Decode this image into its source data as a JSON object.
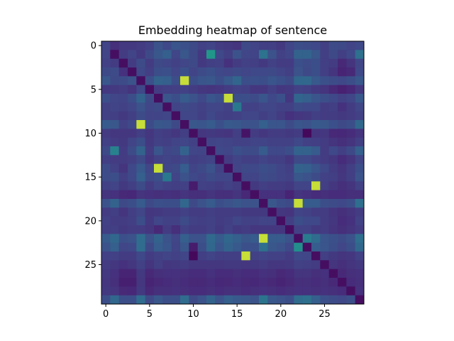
{
  "chart_data": {
    "type": "heatmap",
    "title": "Embedding heatmap of sentence",
    "xlabel": "",
    "ylabel": "",
    "colormap": "viridis",
    "rows": 30,
    "cols": 30,
    "x_ticks": [
      0,
      5,
      10,
      15,
      20,
      25
    ],
    "y_ticks": [
      0,
      5,
      10,
      15,
      20,
      25
    ],
    "value_range": [
      0,
      1
    ],
    "values": [
      [
        0.25,
        0.17,
        0.21,
        0.21,
        0.22,
        0.24,
        0.32,
        0.27,
        0.33,
        0.31,
        0.28,
        0.24,
        0.25,
        0.22,
        0.21,
        0.19,
        0.28,
        0.25,
        0.23,
        0.23,
        0.21,
        0.26,
        0.3,
        0.29,
        0.27,
        0.23,
        0.29,
        0.28,
        0.25,
        0.27
      ],
      [
        0.25,
        0.05,
        0.22,
        0.25,
        0.21,
        0.28,
        0.34,
        0.38,
        0.26,
        0.34,
        0.28,
        0.21,
        0.66,
        0.27,
        0.23,
        0.32,
        0.26,
        0.25,
        0.47,
        0.32,
        0.24,
        0.26,
        0.4,
        0.4,
        0.34,
        0.23,
        0.28,
        0.23,
        0.27,
        0.46
      ],
      [
        0.24,
        0.22,
        0.05,
        0.22,
        0.29,
        0.22,
        0.28,
        0.26,
        0.24,
        0.26,
        0.28,
        0.21,
        0.23,
        0.24,
        0.18,
        0.22,
        0.24,
        0.23,
        0.21,
        0.24,
        0.22,
        0.22,
        0.31,
        0.29,
        0.3,
        0.23,
        0.22,
        0.15,
        0.19,
        0.26
      ],
      [
        0.28,
        0.29,
        0.18,
        0.05,
        0.27,
        0.23,
        0.3,
        0.31,
        0.26,
        0.31,
        0.25,
        0.29,
        0.31,
        0.27,
        0.26,
        0.28,
        0.26,
        0.27,
        0.27,
        0.28,
        0.25,
        0.23,
        0.32,
        0.28,
        0.3,
        0.23,
        0.19,
        0.13,
        0.15,
        0.27
      ],
      [
        0.34,
        0.28,
        0.29,
        0.32,
        0.05,
        0.31,
        0.4,
        0.38,
        0.3,
        0.95,
        0.3,
        0.33,
        0.34,
        0.3,
        0.35,
        0.41,
        0.3,
        0.31,
        0.3,
        0.33,
        0.31,
        0.28,
        0.42,
        0.42,
        0.35,
        0.31,
        0.29,
        0.27,
        0.3,
        0.34
      ],
      [
        0.21,
        0.21,
        0.22,
        0.19,
        0.27,
        0.05,
        0.22,
        0.23,
        0.23,
        0.24,
        0.22,
        0.2,
        0.19,
        0.2,
        0.22,
        0.24,
        0.23,
        0.2,
        0.2,
        0.23,
        0.2,
        0.21,
        0.24,
        0.23,
        0.21,
        0.19,
        0.15,
        0.12,
        0.14,
        0.2
      ],
      [
        0.3,
        0.26,
        0.25,
        0.3,
        0.4,
        0.28,
        0.05,
        0.33,
        0.3,
        0.36,
        0.32,
        0.27,
        0.33,
        0.31,
        0.95,
        0.3,
        0.3,
        0.29,
        0.33,
        0.27,
        0.31,
        0.2,
        0.41,
        0.38,
        0.33,
        0.3,
        0.27,
        0.24,
        0.26,
        0.34
      ],
      [
        0.24,
        0.25,
        0.24,
        0.26,
        0.32,
        0.26,
        0.28,
        0.05,
        0.25,
        0.28,
        0.26,
        0.24,
        0.26,
        0.26,
        0.24,
        0.5,
        0.24,
        0.24,
        0.26,
        0.26,
        0.24,
        0.24,
        0.29,
        0.27,
        0.27,
        0.22,
        0.23,
        0.18,
        0.22,
        0.26
      ],
      [
        0.24,
        0.23,
        0.21,
        0.23,
        0.29,
        0.25,
        0.25,
        0.26,
        0.05,
        0.26,
        0.26,
        0.23,
        0.27,
        0.24,
        0.23,
        0.24,
        0.26,
        0.26,
        0.23,
        0.25,
        0.22,
        0.18,
        0.2,
        0.21,
        0.23,
        0.22,
        0.22,
        0.21,
        0.22,
        0.24
      ],
      [
        0.36,
        0.34,
        0.24,
        0.27,
        0.95,
        0.29,
        0.34,
        0.33,
        0.28,
        0.05,
        0.34,
        0.33,
        0.36,
        0.31,
        0.35,
        0.34,
        0.32,
        0.32,
        0.38,
        0.33,
        0.33,
        0.29,
        0.33,
        0.32,
        0.35,
        0.34,
        0.31,
        0.28,
        0.3,
        0.42
      ],
      [
        0.22,
        0.2,
        0.2,
        0.2,
        0.23,
        0.2,
        0.23,
        0.22,
        0.2,
        0.23,
        0.05,
        0.2,
        0.21,
        0.2,
        0.19,
        0.23,
        0.07,
        0.22,
        0.2,
        0.22,
        0.22,
        0.21,
        0.22,
        0.03,
        0.19,
        0.2,
        0.15,
        0.14,
        0.16,
        0.19
      ],
      [
        0.24,
        0.22,
        0.21,
        0.25,
        0.3,
        0.21,
        0.24,
        0.23,
        0.25,
        0.26,
        0.24,
        0.05,
        0.25,
        0.26,
        0.25,
        0.24,
        0.24,
        0.25,
        0.25,
        0.24,
        0.24,
        0.24,
        0.27,
        0.24,
        0.23,
        0.22,
        0.19,
        0.17,
        0.19,
        0.23
      ],
      [
        0.28,
        0.55,
        0.22,
        0.29,
        0.4,
        0.22,
        0.33,
        0.26,
        0.28,
        0.4,
        0.26,
        0.25,
        0.05,
        0.27,
        0.26,
        0.31,
        0.29,
        0.29,
        0.36,
        0.27,
        0.27,
        0.3,
        0.4,
        0.4,
        0.36,
        0.22,
        0.27,
        0.23,
        0.28,
        0.38
      ],
      [
        0.23,
        0.22,
        0.22,
        0.23,
        0.28,
        0.2,
        0.24,
        0.25,
        0.24,
        0.26,
        0.23,
        0.24,
        0.25,
        0.05,
        0.22,
        0.25,
        0.23,
        0.23,
        0.25,
        0.23,
        0.23,
        0.2,
        0.28,
        0.27,
        0.24,
        0.22,
        0.2,
        0.16,
        0.19,
        0.25
      ],
      [
        0.29,
        0.24,
        0.19,
        0.27,
        0.35,
        0.26,
        0.95,
        0.26,
        0.28,
        0.37,
        0.25,
        0.28,
        0.32,
        0.24,
        0.05,
        0.25,
        0.28,
        0.27,
        0.3,
        0.29,
        0.25,
        0.23,
        0.4,
        0.38,
        0.33,
        0.27,
        0.22,
        0.19,
        0.23,
        0.3
      ],
      [
        0.29,
        0.3,
        0.23,
        0.27,
        0.38,
        0.28,
        0.3,
        0.5,
        0.25,
        0.32,
        0.27,
        0.25,
        0.29,
        0.26,
        0.26,
        0.05,
        0.25,
        0.25,
        0.29,
        0.28,
        0.25,
        0.24,
        0.34,
        0.32,
        0.29,
        0.24,
        0.23,
        0.2,
        0.23,
        0.32
      ],
      [
        0.24,
        0.25,
        0.21,
        0.23,
        0.29,
        0.22,
        0.26,
        0.24,
        0.23,
        0.24,
        0.1,
        0.24,
        0.23,
        0.22,
        0.24,
        0.22,
        0.05,
        0.21,
        0.23,
        0.22,
        0.22,
        0.21,
        0.25,
        0.25,
        0.95,
        0.23,
        0.2,
        0.17,
        0.19,
        0.24
      ],
      [
        0.19,
        0.18,
        0.15,
        0.14,
        0.19,
        0.18,
        0.17,
        0.18,
        0.17,
        0.19,
        0.17,
        0.17,
        0.19,
        0.17,
        0.17,
        0.19,
        0.15,
        0.05,
        0.18,
        0.18,
        0.18,
        0.13,
        0.19,
        0.18,
        0.16,
        0.17,
        0.16,
        0.16,
        0.17,
        0.17
      ],
      [
        0.32,
        0.4,
        0.28,
        0.3,
        0.36,
        0.28,
        0.31,
        0.3,
        0.3,
        0.42,
        0.28,
        0.32,
        0.36,
        0.3,
        0.32,
        0.34,
        0.32,
        0.32,
        0.05,
        0.34,
        0.3,
        0.28,
        0.95,
        0.36,
        0.36,
        0.3,
        0.29,
        0.27,
        0.3,
        0.45
      ],
      [
        0.22,
        0.23,
        0.19,
        0.23,
        0.26,
        0.2,
        0.21,
        0.22,
        0.22,
        0.24,
        0.22,
        0.22,
        0.23,
        0.22,
        0.22,
        0.22,
        0.21,
        0.21,
        0.21,
        0.05,
        0.2,
        0.19,
        0.25,
        0.24,
        0.22,
        0.22,
        0.19,
        0.17,
        0.19,
        0.22
      ],
      [
        0.24,
        0.22,
        0.22,
        0.23,
        0.3,
        0.21,
        0.26,
        0.24,
        0.24,
        0.29,
        0.24,
        0.23,
        0.24,
        0.22,
        0.23,
        0.26,
        0.24,
        0.24,
        0.25,
        0.25,
        0.05,
        0.23,
        0.3,
        0.27,
        0.27,
        0.22,
        0.2,
        0.16,
        0.18,
        0.24
      ],
      [
        0.23,
        0.23,
        0.21,
        0.22,
        0.22,
        0.2,
        0.15,
        0.22,
        0.17,
        0.24,
        0.22,
        0.22,
        0.24,
        0.21,
        0.24,
        0.21,
        0.22,
        0.2,
        0.2,
        0.2,
        0.2,
        0.05,
        0.24,
        0.24,
        0.21,
        0.22,
        0.19,
        0.17,
        0.19,
        0.22
      ],
      [
        0.36,
        0.42,
        0.31,
        0.32,
        0.44,
        0.32,
        0.4,
        0.32,
        0.26,
        0.38,
        0.32,
        0.32,
        0.43,
        0.36,
        0.42,
        0.38,
        0.34,
        0.36,
        0.95,
        0.36,
        0.36,
        0.32,
        0.05,
        0.52,
        0.44,
        0.33,
        0.31,
        0.29,
        0.32,
        0.45
      ],
      [
        0.32,
        0.38,
        0.26,
        0.27,
        0.44,
        0.28,
        0.37,
        0.33,
        0.25,
        0.34,
        0.1,
        0.3,
        0.42,
        0.33,
        0.4,
        0.35,
        0.31,
        0.31,
        0.45,
        0.34,
        0.32,
        0.27,
        0.62,
        0.05,
        0.37,
        0.33,
        0.3,
        0.26,
        0.3,
        0.42
      ],
      [
        0.24,
        0.24,
        0.22,
        0.22,
        0.27,
        0.22,
        0.24,
        0.25,
        0.24,
        0.26,
        0.03,
        0.23,
        0.25,
        0.23,
        0.23,
        0.23,
        0.95,
        0.24,
        0.25,
        0.24,
        0.24,
        0.22,
        0.27,
        0.26,
        0.05,
        0.23,
        0.21,
        0.19,
        0.2,
        0.24
      ],
      [
        0.22,
        0.2,
        0.18,
        0.2,
        0.24,
        0.19,
        0.23,
        0.2,
        0.21,
        0.22,
        0.2,
        0.2,
        0.2,
        0.2,
        0.21,
        0.21,
        0.2,
        0.21,
        0.22,
        0.2,
        0.2,
        0.21,
        0.24,
        0.23,
        0.22,
        0.05,
        0.19,
        0.17,
        0.19,
        0.21
      ],
      [
        0.21,
        0.18,
        0.13,
        0.13,
        0.21,
        0.15,
        0.17,
        0.18,
        0.18,
        0.17,
        0.16,
        0.16,
        0.18,
        0.16,
        0.16,
        0.17,
        0.16,
        0.16,
        0.18,
        0.17,
        0.15,
        0.16,
        0.19,
        0.19,
        0.17,
        0.18,
        0.05,
        0.15,
        0.17,
        0.18
      ],
      [
        0.2,
        0.17,
        0.11,
        0.11,
        0.2,
        0.13,
        0.15,
        0.16,
        0.17,
        0.16,
        0.15,
        0.15,
        0.16,
        0.14,
        0.15,
        0.16,
        0.15,
        0.14,
        0.16,
        0.15,
        0.13,
        0.15,
        0.17,
        0.17,
        0.16,
        0.17,
        0.15,
        0.05,
        0.16,
        0.17
      ],
      [
        0.21,
        0.19,
        0.15,
        0.14,
        0.21,
        0.15,
        0.17,
        0.17,
        0.18,
        0.17,
        0.16,
        0.16,
        0.17,
        0.16,
        0.17,
        0.17,
        0.16,
        0.17,
        0.18,
        0.17,
        0.16,
        0.17,
        0.18,
        0.18,
        0.17,
        0.18,
        0.17,
        0.16,
        0.05,
        0.18
      ],
      [
        0.3,
        0.42,
        0.3,
        0.3,
        0.44,
        0.28,
        0.34,
        0.3,
        0.3,
        0.44,
        0.28,
        0.32,
        0.4,
        0.32,
        0.38,
        0.35,
        0.34,
        0.32,
        0.48,
        0.34,
        0.32,
        0.3,
        0.44,
        0.46,
        0.38,
        0.31,
        0.29,
        0.27,
        0.3,
        0.05
      ]
    ]
  }
}
